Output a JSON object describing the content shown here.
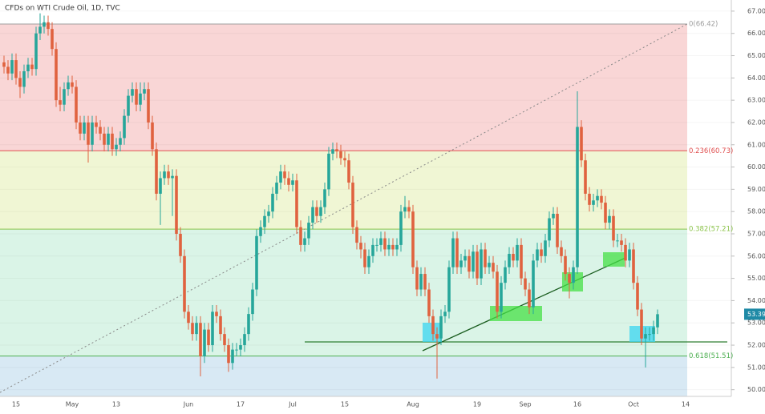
{
  "chart_data": {
    "type": "candlestick",
    "title": "CFDs on WTI Crude Oil, 1D, TVC",
    "up_color": "#26a69a",
    "down_color": "#e0623f",
    "ylim": [
      49.7,
      67.5
    ],
    "yticks": [
      {
        "value": 50,
        "label": "50.00"
      },
      {
        "value": 51,
        "label": "51.00"
      },
      {
        "value": 52,
        "label": "52.00"
      },
      {
        "value": 53,
        "label": "53.00"
      },
      {
        "value": 54,
        "label": "54.00"
      },
      {
        "value": 55,
        "label": "55.00"
      },
      {
        "value": 56,
        "label": "56.00"
      },
      {
        "value": 57,
        "label": "57.00"
      },
      {
        "value": 58,
        "label": "58.00"
      },
      {
        "value": 59,
        "label": "59.00"
      },
      {
        "value": 60,
        "label": "60.00"
      },
      {
        "value": 61,
        "label": "61.00"
      },
      {
        "value": 62,
        "label": "62.00"
      },
      {
        "value": 63,
        "label": "63.00"
      },
      {
        "value": 64,
        "label": "64.00"
      },
      {
        "value": 65,
        "label": "65.00"
      },
      {
        "value": 66,
        "label": "66.00"
      },
      {
        "value": 67,
        "label": "67.00"
      }
    ],
    "grid": true,
    "fib_levels": [
      {
        "label": "0(66.42)",
        "value": 66.42,
        "line_color": "#9e9e9e",
        "fill": "#f8d2d2"
      },
      {
        "label": "0.236(60.73)",
        "value": 60.73,
        "line_color": "#e05050",
        "fill": "#eef5cf"
      },
      {
        "label": "0.382(57.21)",
        "value": 57.21,
        "line_color": "#8bc34a",
        "fill": "#d6f3e4"
      },
      {
        "label": "0.618(51.51)",
        "value": 51.51,
        "line_color": "#4caf50",
        "fill": "#d4e7f3"
      }
    ],
    "categories": [
      null,
      null,
      null,
      "15",
      null,
      null,
      null,
      null,
      null,
      null,
      null,
      null,
      null,
      null,
      null,
      null,
      null,
      "May",
      null,
      null,
      null,
      null,
      null,
      null,
      null,
      null,
      null,
      null,
      "13",
      null,
      null,
      null,
      null,
      null,
      null,
      null,
      null,
      null,
      null,
      null,
      null,
      null,
      null,
      null,
      null,
      null,
      "Jun",
      null,
      null,
      null,
      null,
      null,
      null,
      null,
      null,
      null,
      null,
      null,
      null,
      "17",
      null,
      null,
      null,
      null,
      null,
      null,
      null,
      null,
      null,
      null,
      null,
      null,
      "Jul",
      null,
      null,
      null,
      null,
      null,
      null,
      null,
      null,
      null,
      null,
      null,
      null,
      "15",
      null,
      null,
      null,
      null,
      null,
      null,
      null,
      null,
      null,
      null,
      null,
      null,
      null,
      null,
      null,
      null,
      "Aug",
      null,
      null,
      null,
      null,
      null,
      null,
      null,
      null,
      null,
      null,
      null,
      null,
      null,
      null,
      null,
      "19",
      null,
      null,
      null,
      null,
      null,
      null,
      null,
      null,
      null,
      null,
      null,
      "Sep",
      null,
      null,
      null,
      null,
      null,
      null,
      null,
      null,
      null,
      null,
      null,
      null,
      "16",
      null,
      null,
      null,
      null,
      null,
      null,
      null,
      null,
      null,
      null,
      null,
      null,
      null,
      "Oct",
      null,
      null,
      null,
      null,
      null,
      null,
      null,
      null,
      null,
      null,
      null,
      null,
      "14",
      null
    ],
    "open": [
      64.7,
      64.5,
      64.2,
      64.8,
      64.0,
      63.6,
      64.3,
      64.6,
      64.4,
      66.0,
      66.3,
      66.5,
      66.2,
      65.3,
      63.0,
      62.8,
      63.5,
      63.8,
      63.6,
      62.0,
      61.5,
      62.0,
      61.0,
      62.0,
      61.8,
      61.5,
      61.0,
      61.5,
      60.8,
      61.0,
      61.3,
      62.3,
      63.2,
      63.5,
      62.8,
      63.3,
      63.5,
      62.0,
      60.8,
      58.8,
      59.5,
      59.8,
      59.5,
      59.6,
      57.0,
      56.0,
      53.5,
      53.0,
      52.5,
      53.0,
      51.5,
      52.7,
      52.0,
      53.5,
      53.3,
      52.5,
      52.0,
      51.2,
      51.8,
      51.8,
      52.0,
      52.5,
      53.4,
      54.5,
      56.9,
      57.3,
      57.8,
      58.0,
      58.8,
      59.3,
      59.8,
      59.5,
      59.2,
      59.4,
      57.3,
      56.5,
      56.8,
      57.5,
      58.2,
      57.8,
      58.2,
      59.0,
      60.6,
      60.8,
      60.7,
      60.4,
      60.3,
      59.3,
      57.3,
      56.6,
      56.3,
      55.5,
      56.0,
      56.5,
      56.5,
      56.8,
      56.3,
      56.5,
      56.3,
      56.5,
      58.0,
      58.2,
      58.0,
      55.5,
      54.5,
      55.2,
      54.5,
      53.3,
      52.5,
      52.3,
      53.3,
      53.5,
      55.5,
      56.8,
      55.5,
      55.8,
      56.0,
      55.3,
      56.2,
      55.0,
      56.3,
      55.5,
      55.7,
      55.3,
      53.5,
      54.8,
      55.5,
      56.1,
      55.8,
      56.5,
      55.0,
      54.5,
      53.7,
      55.8,
      56.3,
      56.0,
      56.7,
      57.7,
      57.9,
      56.4,
      56.0,
      55.2,
      54.8,
      55.5,
      61.8,
      60.3,
      58.8,
      58.3,
      58.5,
      58.7,
      58.4,
      57.5,
      57.8,
      56.7,
      56.7,
      56.5,
      55.8,
      56.3,
      54.8,
      53.6,
      52.3,
      52.5,
      52.5,
      52.8,
      null,
      null,
      null,
      null,
      null,
      null,
      null,
      null
    ],
    "high": [
      65.0,
      64.8,
      65.1,
      65.1,
      64.3,
      64.6,
      64.9,
      64.9,
      66.3,
      66.9,
      66.8,
      66.8,
      66.5,
      65.6,
      63.6,
      63.8,
      64.1,
      64.1,
      63.9,
      62.3,
      62.3,
      62.3,
      62.3,
      62.3,
      62.1,
      61.8,
      61.8,
      61.8,
      61.3,
      61.6,
      62.6,
      63.5,
      63.8,
      63.8,
      63.8,
      63.8,
      63.8,
      62.3,
      61.1,
      59.8,
      60.1,
      60.1,
      59.9,
      59.9,
      57.3,
      56.3,
      53.8,
      53.3,
      53.3,
      53.3,
      53.0,
      53.0,
      53.8,
      53.8,
      53.6,
      52.8,
      52.3,
      52.1,
      52.1,
      52.3,
      52.8,
      53.7,
      54.8,
      57.2,
      57.6,
      58.1,
      58.3,
      59.1,
      59.6,
      60.1,
      60.1,
      59.8,
      59.7,
      59.7,
      57.6,
      57.1,
      57.8,
      58.5,
      58.5,
      58.5,
      59.3,
      60.9,
      61.1,
      61.1,
      61.0,
      60.7,
      60.6,
      59.6,
      57.6,
      56.9,
      56.6,
      56.3,
      56.8,
      56.8,
      57.1,
      57.1,
      56.8,
      56.8,
      56.8,
      58.3,
      58.7,
      58.5,
      58.3,
      55.8,
      55.5,
      55.5,
      54.8,
      53.6,
      52.8,
      53.6,
      53.8,
      55.8,
      57.1,
      57.1,
      56.1,
      56.3,
      56.3,
      56.5,
      56.5,
      56.6,
      56.6,
      56.0,
      56.0,
      55.6,
      55.1,
      55.8,
      56.4,
      56.4,
      56.8,
      56.8,
      55.3,
      54.8,
      56.1,
      56.6,
      56.6,
      57.0,
      58.0,
      58.2,
      58.2,
      56.7,
      56.3,
      55.5,
      55.8,
      63.4,
      62.1,
      60.6,
      59.1,
      58.8,
      59.0,
      59.0,
      58.7,
      58.1,
      58.1,
      57.0,
      57.0,
      56.8,
      56.6,
      56.6,
      55.1,
      53.9,
      52.8,
      52.8,
      53.1,
      53.6,
      null,
      null,
      null,
      null,
      null,
      null,
      null,
      null
    ],
    "low": [
      64.2,
      63.9,
      63.9,
      63.7,
      63.1,
      63.3,
      64.0,
      64.1,
      64.1,
      65.7,
      66.0,
      65.9,
      65.0,
      62.7,
      62.5,
      62.5,
      63.2,
      63.3,
      61.7,
      61.2,
      61.2,
      60.2,
      60.7,
      61.5,
      61.2,
      60.7,
      60.7,
      60.5,
      60.5,
      60.7,
      61.0,
      62.0,
      62.9,
      62.5,
      62.5,
      63.0,
      61.7,
      60.5,
      58.5,
      57.4,
      59.2,
      59.2,
      57.8,
      56.7,
      55.7,
      53.2,
      52.7,
      52.2,
      52.2,
      50.6,
      51.2,
      51.7,
      51.7,
      53.0,
      52.2,
      51.7,
      50.8,
      50.9,
      51.5,
      51.5,
      51.7,
      52.2,
      53.1,
      54.2,
      56.6,
      57.0,
      57.5,
      57.7,
      58.5,
      59.0,
      59.2,
      58.9,
      58.9,
      57.0,
      56.2,
      56.2,
      56.5,
      57.2,
      57.5,
      57.5,
      57.9,
      58.7,
      60.3,
      60.4,
      60.1,
      60.0,
      59.0,
      57.0,
      56.3,
      55.9,
      55.2,
      55.2,
      55.7,
      56.2,
      56.2,
      56.0,
      56.0,
      56.0,
      56.0,
      56.2,
      57.7,
      57.7,
      55.2,
      54.2,
      54.2,
      54.2,
      53.0,
      52.2,
      50.5,
      52.0,
      53.0,
      53.2,
      55.2,
      55.2,
      55.2,
      55.5,
      55.0,
      55.0,
      54.7,
      54.7,
      55.2,
      55.2,
      55.0,
      53.2,
      53.2,
      54.5,
      55.2,
      55.5,
      55.5,
      54.7,
      54.2,
      53.4,
      53.4,
      55.5,
      55.7,
      55.7,
      56.4,
      57.4,
      56.1,
      55.7,
      54.9,
      54.1,
      54.5,
      55.2,
      60.0,
      58.5,
      58.0,
      58.0,
      58.2,
      58.1,
      57.2,
      57.2,
      56.4,
      56.4,
      56.2,
      55.5,
      55.5,
      54.5,
      53.3,
      52.0,
      51.0,
      52.2,
      52.2,
      52.5,
      null,
      null,
      null,
      null,
      null,
      null,
      null,
      null
    ],
    "close": [
      64.5,
      64.2,
      64.8,
      64.0,
      63.6,
      64.3,
      64.6,
      64.4,
      66.0,
      66.3,
      66.5,
      66.2,
      65.3,
      63.0,
      62.8,
      63.5,
      63.8,
      63.6,
      62.0,
      61.5,
      62.0,
      61.0,
      62.0,
      61.8,
      61.5,
      61.0,
      61.5,
      60.8,
      61.0,
      61.3,
      62.3,
      63.2,
      63.5,
      62.8,
      63.3,
      63.5,
      62.0,
      60.8,
      58.8,
      59.5,
      59.8,
      59.5,
      59.6,
      57.0,
      56.0,
      53.5,
      53.0,
      52.5,
      53.0,
      51.5,
      52.7,
      52.0,
      53.5,
      53.3,
      52.5,
      52.0,
      51.2,
      51.8,
      51.8,
      52.0,
      52.5,
      53.4,
      54.5,
      56.9,
      57.3,
      57.8,
      58.0,
      58.8,
      59.3,
      59.8,
      59.5,
      59.2,
      59.4,
      57.3,
      56.5,
      56.8,
      57.5,
      58.2,
      57.8,
      58.2,
      59.0,
      60.6,
      60.8,
      60.7,
      60.4,
      60.3,
      59.3,
      57.3,
      56.6,
      56.3,
      55.5,
      56.0,
      56.5,
      56.5,
      56.8,
      56.3,
      56.5,
      56.3,
      56.5,
      58.0,
      58.2,
      58.0,
      55.5,
      54.5,
      55.2,
      54.5,
      53.3,
      52.5,
      52.3,
      53.3,
      53.5,
      55.5,
      56.8,
      55.5,
      55.8,
      56.0,
      55.3,
      56.2,
      55.0,
      56.3,
      55.5,
      55.7,
      55.3,
      53.5,
      54.8,
      55.5,
      56.1,
      55.8,
      56.5,
      55.0,
      54.5,
      53.7,
      55.8,
      56.3,
      56.0,
      56.7,
      57.7,
      57.9,
      56.4,
      56.0,
      55.2,
      54.8,
      55.5,
      61.8,
      60.3,
      58.8,
      58.3,
      58.5,
      58.7,
      58.4,
      57.5,
      57.8,
      56.7,
      56.7,
      56.5,
      55.8,
      56.3,
      54.8,
      53.6,
      52.3,
      52.5,
      52.5,
      52.8,
      53.39,
      null,
      null,
      null,
      null,
      null,
      null,
      null,
      null
    ]
  }
}
